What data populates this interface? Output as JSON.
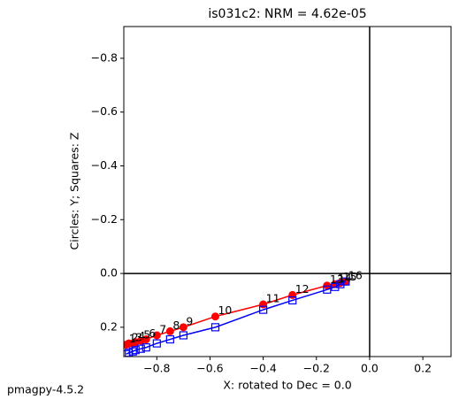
{
  "chart_data": {
    "type": "zijderveld",
    "title": "is031c2: NRM =  4.62e-05",
    "xlabel": "X: rotated to Dec =     0.0",
    "ylabel": "Circles: Y; Squares: Z",
    "footer": "pmagpy-4.5.2",
    "categories": [
      "1",
      "2",
      "3",
      "4",
      "5",
      "6",
      "7",
      "8",
      "9",
      "10",
      "11",
      "12",
      "13",
      "14",
      "15",
      "16"
    ],
    "x": [
      -0.915,
      -0.905,
      -0.89,
      -0.88,
      -0.86,
      -0.84,
      -0.8,
      -0.75,
      -0.7,
      -0.58,
      -0.4,
      -0.29,
      -0.16,
      -0.13,
      -0.11,
      -0.09
    ],
    "series": [
      {
        "marker": "circle",
        "color": "#ff0000",
        "values": [
          0.265,
          0.26,
          0.26,
          0.255,
          0.25,
          0.245,
          0.23,
          0.215,
          0.2,
          0.16,
          0.115,
          0.08,
          0.045,
          0.04,
          0.035,
          0.03
        ]
      },
      {
        "marker": "square",
        "color": "#0000ff",
        "values": [
          0.3,
          0.295,
          0.29,
          0.285,
          0.28,
          0.275,
          0.26,
          0.245,
          0.23,
          0.2,
          0.135,
          0.1,
          0.06,
          0.05,
          0.04,
          0.03
        ]
      }
    ],
    "xlim": [
      -0.924,
      0.306
    ],
    "ylim": [
      0.309,
      -0.918
    ],
    "xticks": [
      {
        "value": -0.8,
        "label": "−0.8"
      },
      {
        "value": -0.6,
        "label": "−0.6"
      },
      {
        "value": -0.4,
        "label": "−0.4"
      },
      {
        "value": -0.2,
        "label": "−0.2"
      },
      {
        "value": 0,
        "label": "0.0"
      },
      0.2
    ],
    "yticks": [
      {
        "value": -0.8,
        "label": "−0.8"
      },
      {
        "value": -0.6,
        "label": "−0.6"
      },
      {
        "value": -0.4,
        "label": "−0.4"
      },
      {
        "value": -0.2,
        "label": "−0.2"
      },
      {
        "value": 0,
        "label": "0.0"
      },
      0.2
    ]
  }
}
